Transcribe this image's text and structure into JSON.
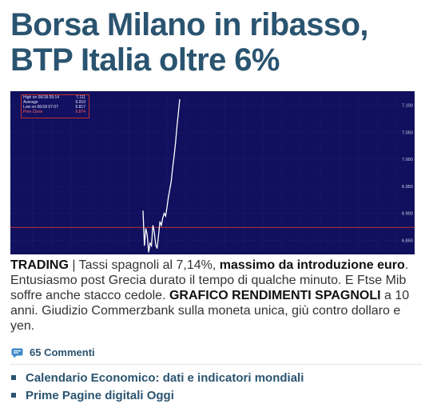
{
  "headline": {
    "line1": "Borsa Milano in ribasso,",
    "line2": "BTP Italia oltre 6%"
  },
  "chart_data": {
    "type": "line",
    "info_box": [
      {
        "label": "High on 06/18 09:14",
        "value": "7.111"
      },
      {
        "label": "Average",
        "value": "6.910"
      },
      {
        "label": "Low on 06/18 07:07",
        "value": "6.817"
      },
      {
        "label": "Prev Close",
        "value": "6.874"
      }
    ],
    "y_ticks": [
      "7.100",
      "7.050",
      "7.000",
      "6.950",
      "6.900",
      "6.850"
    ],
    "reference_line": 6.874,
    "ylim": [
      6.83,
      7.12
    ],
    "series": [
      {
        "values": [
          6.905,
          6.84,
          6.872,
          6.86,
          6.828,
          6.845,
          6.84,
          6.878,
          6.865,
          6.842,
          6.835,
          6.86,
          6.885,
          6.878,
          6.892,
          6.9,
          6.895,
          6.912,
          6.93,
          6.945,
          6.96,
          6.985,
          7.005,
          7.03,
          7.06,
          7.085,
          7.111
        ]
      }
    ]
  },
  "article": {
    "category": "TRADING",
    "separator": " | ",
    "text1": "Tassi spagnoli al 7,14%, ",
    "bold1": "massimo da introduzione euro",
    "text2": ". Entusiasmo post Grecia durato il tempo di qualche minuto. E Ftse Mib soffre anche stacco cedole. ",
    "bold2": "GRAFICO RENDIMENTI SPAGNOLI",
    "text3": " a 10 anni. Giudizio Commerzbank sulla moneta unica, giù contro dollaro e yen."
  },
  "comments": {
    "icon": "comment-bubble-icon",
    "label": "65 Commenti"
  },
  "links": [
    {
      "label": "Calendario Economico: dati e indicatori mondiali"
    },
    {
      "label": "Prime Pagine digitali Oggi"
    }
  ],
  "colors": {
    "headline": "#2a5470",
    "chart_bg": "#10105e",
    "line": "#ffffff",
    "reference": "#c03030"
  }
}
